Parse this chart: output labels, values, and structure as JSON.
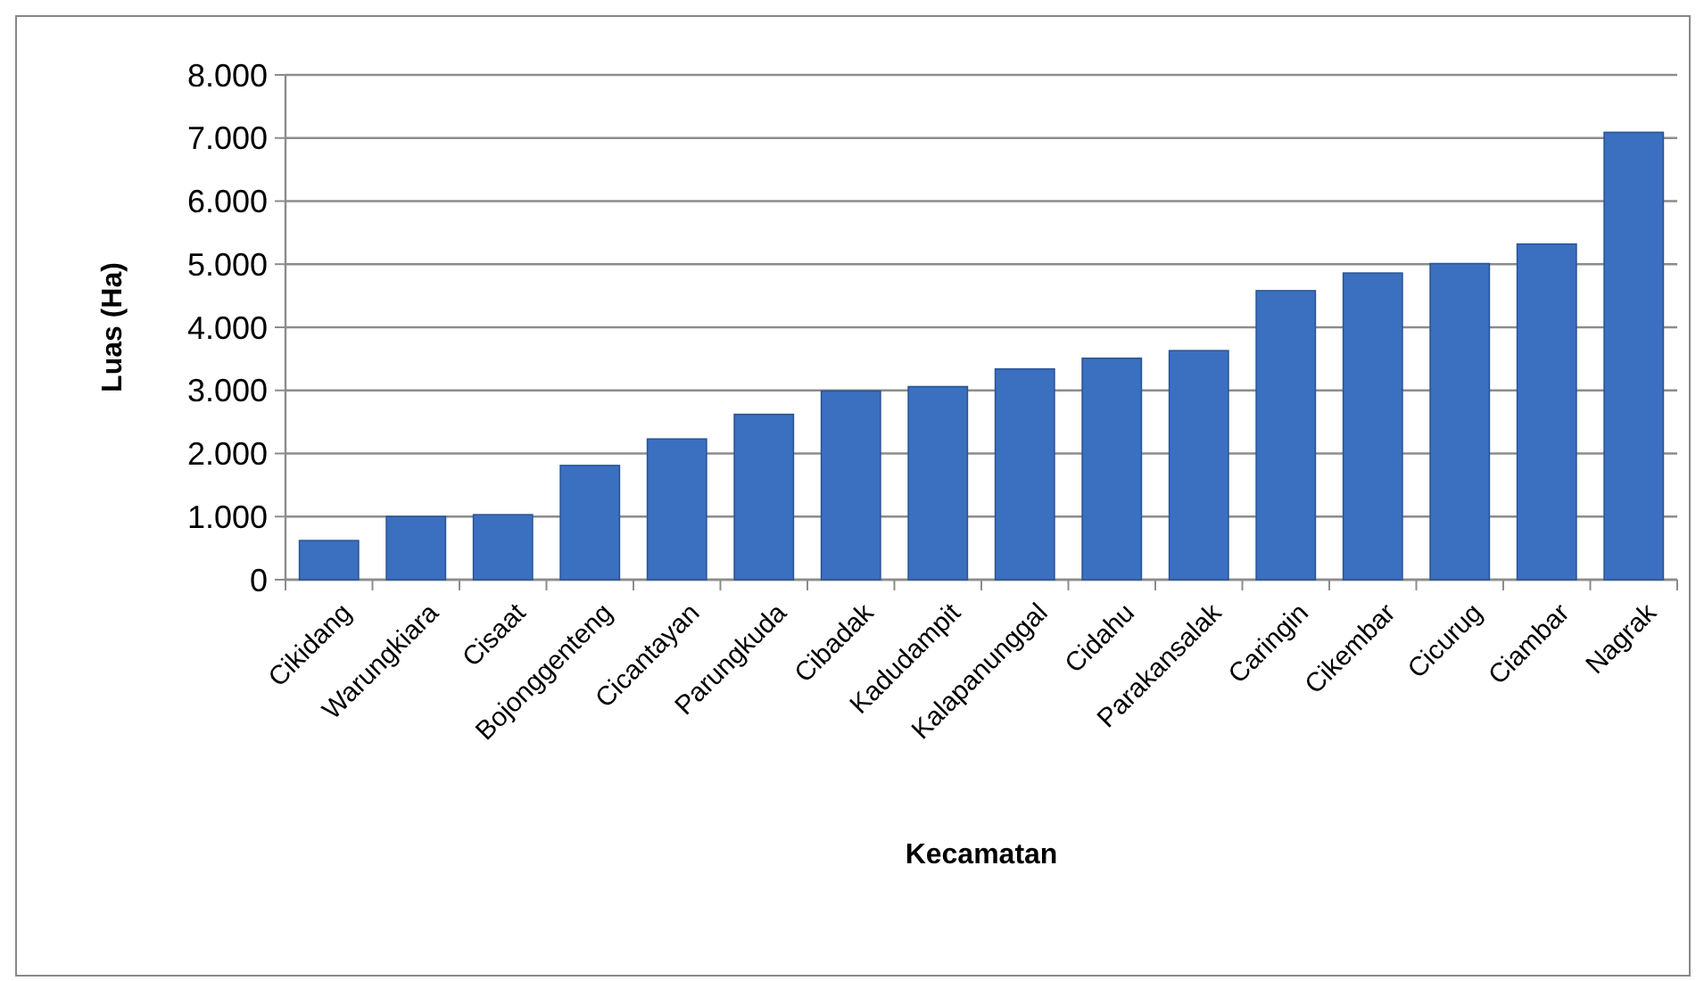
{
  "chart_data": {
    "type": "bar",
    "xlabel": "Kecamatan",
    "ylabel": "Luas (Ha)",
    "categories": [
      "Cikidang",
      "Warungkiara",
      "Cisaat",
      "Bojonggenteng",
      "Cicantayan",
      "Parungkuda",
      "Cibadak",
      "Kadudampit",
      "Kalapanunggal",
      "Cidahu",
      "Parakansalak",
      "Caringin",
      "Cikembar",
      "Cicurug",
      "Ciambar",
      "Nagrak"
    ],
    "values": [
      620,
      1000,
      1030,
      1810,
      2230,
      2620,
      2990,
      3060,
      3340,
      3510,
      3630,
      4580,
      4860,
      5010,
      5320,
      7090
    ],
    "color": "#3b6fbf",
    "ylim": [
      0,
      8000
    ],
    "yticks": [
      0,
      {
        "value": 1000,
        "label": "1.000"
      },
      {
        "value": 2000,
        "label": "2.000"
      },
      {
        "value": 3000,
        "label": "3.000"
      },
      {
        "value": 4000,
        "label": "4.000"
      },
      {
        "value": 5000,
        "label": "5.000"
      },
      {
        "value": 6000,
        "label": "6.000"
      },
      {
        "value": 7000,
        "label": "7.000"
      },
      {
        "value": 8000,
        "label": "8.000"
      }
    ],
    "grid": "y"
  }
}
